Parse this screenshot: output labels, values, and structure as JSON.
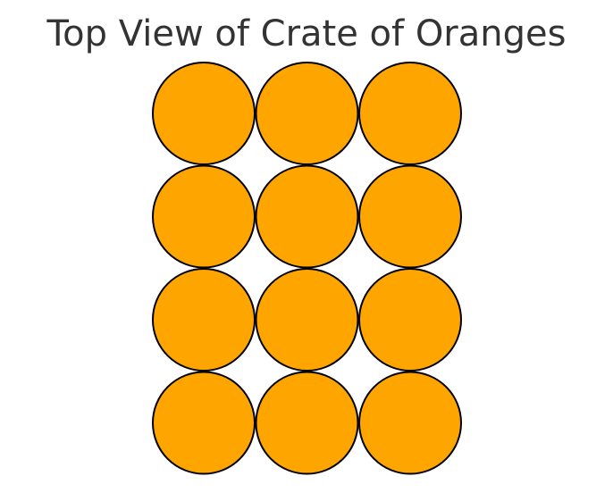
{
  "title": "Top View of Crate of Oranges",
  "crate": {
    "rows": 4,
    "columns": 3,
    "orange_color": "#FFA500",
    "outline_color": "#000000"
  }
}
